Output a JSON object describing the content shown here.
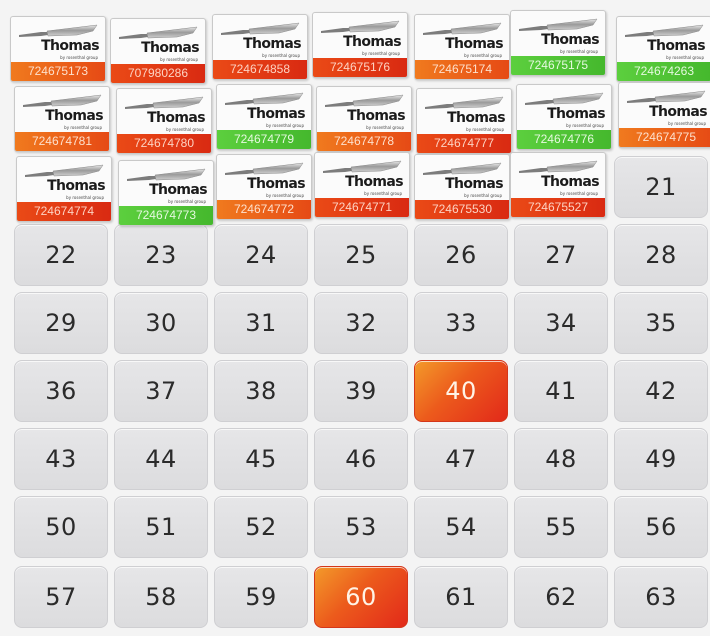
{
  "brand": {
    "name": "Thomas",
    "tagline": "by rosenthal group"
  },
  "colors": {
    "cell_background": "#dedee0",
    "highlight_gradient": [
      "#f39a2a",
      "#e2291a"
    ],
    "tag_orange": "#f07a1e",
    "tag_red": "#e23a14",
    "tag_green": "#52c635"
  },
  "stickers": [
    {
      "code": "724675173",
      "tag_color": "orange"
    },
    {
      "code": "707980286",
      "tag_color": "red"
    },
    {
      "code": "724674858",
      "tag_color": "red"
    },
    {
      "code": "724675176",
      "tag_color": "red"
    },
    {
      "code": "724675174",
      "tag_color": "orange"
    },
    {
      "code": "724675175",
      "tag_color": "green"
    },
    {
      "code": "724674263",
      "tag_color": "green"
    },
    {
      "code": "724674781",
      "tag_color": "orange"
    },
    {
      "code": "724674780",
      "tag_color": "red"
    },
    {
      "code": "724674779",
      "tag_color": "green"
    },
    {
      "code": "724674778",
      "tag_color": "orange"
    },
    {
      "code": "724674777",
      "tag_color": "red"
    },
    {
      "code": "724674776",
      "tag_color": "green"
    },
    {
      "code": "724674775",
      "tag_color": "orange"
    },
    {
      "code": "724674774",
      "tag_color": "red"
    },
    {
      "code": "724674773",
      "tag_color": "green"
    },
    {
      "code": "724674772",
      "tag_color": "orange"
    },
    {
      "code": "724674771",
      "tag_color": "red"
    },
    {
      "code": "724675530",
      "tag_color": "red"
    },
    {
      "code": "724675527",
      "tag_color": "red"
    }
  ],
  "cells": [
    "21",
    "22",
    "23",
    "24",
    "25",
    "26",
    "27",
    "28",
    "29",
    "30",
    "31",
    "32",
    "33",
    "34",
    "35",
    "36",
    "37",
    "38",
    "39",
    "40",
    "41",
    "42",
    "43",
    "44",
    "45",
    "46",
    "47",
    "48",
    "49",
    "50",
    "51",
    "52",
    "53",
    "54",
    "55",
    "56",
    "57",
    "58",
    "59",
    "60",
    "61",
    "62",
    "63"
  ],
  "highlighted_cells": [
    "40",
    "60"
  ]
}
